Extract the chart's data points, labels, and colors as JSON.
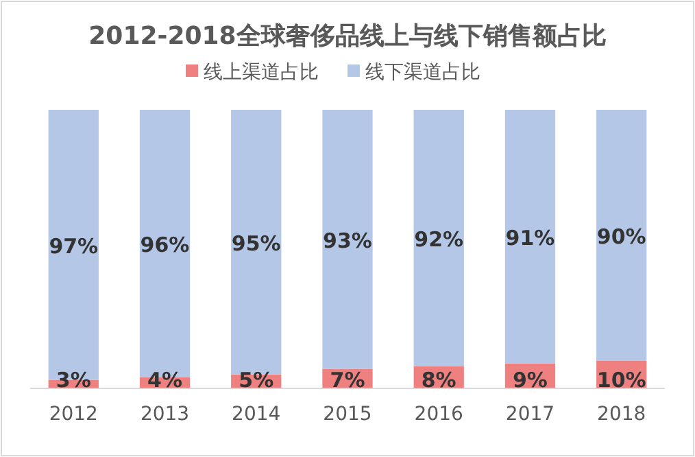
{
  "chart_data": {
    "type": "bar",
    "title": "2012-2018全球奢侈品线上与线下销售额占比",
    "categories": [
      "2012",
      "2013",
      "2014",
      "2015",
      "2016",
      "2017",
      "2018"
    ],
    "stacked": true,
    "legend": "top",
    "grid": false,
    "series": [
      {
        "name": "线上渠道占比",
        "color": "#ee8080",
        "values": [
          3,
          4,
          5,
          7,
          8,
          9,
          10
        ],
        "value_labels": [
          "3%",
          "4%",
          "5%",
          "7%",
          "8%",
          "9%",
          "10%"
        ]
      },
      {
        "name": "线下渠道占比",
        "color": "#b4c7e7",
        "values": [
          97,
          96,
          95,
          93,
          92,
          91,
          90
        ],
        "value_labels": [
          "97%",
          "96%",
          "95%",
          "93%",
          "92%",
          "91%",
          "90%"
        ]
      }
    ]
  }
}
